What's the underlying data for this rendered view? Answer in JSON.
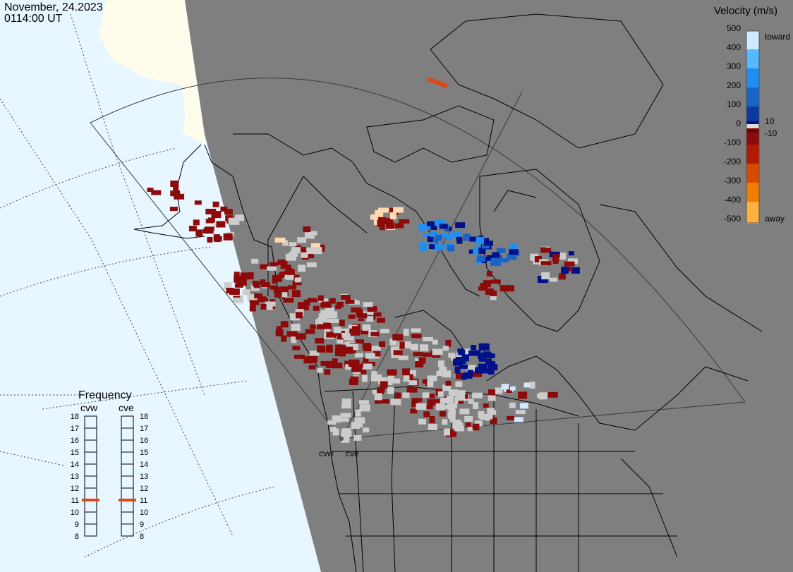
{
  "header": {
    "date": "November, 24.2023",
    "time": "0114:00 UT"
  },
  "legend": {
    "title": "Velocity (m/s)",
    "ticks": [
      "500",
      "400",
      "300",
      "200",
      "100",
      "10",
      "0",
      "-10",
      "-100",
      "-200",
      "-300",
      "-400",
      "-500"
    ],
    "toward_label": "toward",
    "away_label": "away",
    "colors": [
      "#cfe9ff",
      "#56b8ff",
      "#1e8ff0",
      "#1a64c8",
      "#0a3aa0",
      "#00118a",
      "#7a0000",
      "#8c0a0a",
      "#b31a00",
      "#d94a00",
      "#f07d00",
      "#ffb040",
      "#ffd9b0"
    ]
  },
  "frequency": {
    "title": "Frequency",
    "scale": [
      "18",
      "17",
      "16",
      "15",
      "14",
      "13",
      "12",
      "11",
      "10",
      "9",
      "8"
    ],
    "radars": [
      {
        "name": "cvw",
        "freq_mhz": 11
      },
      {
        "name": "cve",
        "freq_mhz": 11
      }
    ]
  },
  "radar_sites": [
    "cvw",
    "cve"
  ],
  "colors": {
    "ocean": "#e8f6ff",
    "night": "#7f7f7f",
    "land_day": "#fffcec",
    "ground_scatter": "#cccccc",
    "freq_marker": "#d94a1a"
  }
}
